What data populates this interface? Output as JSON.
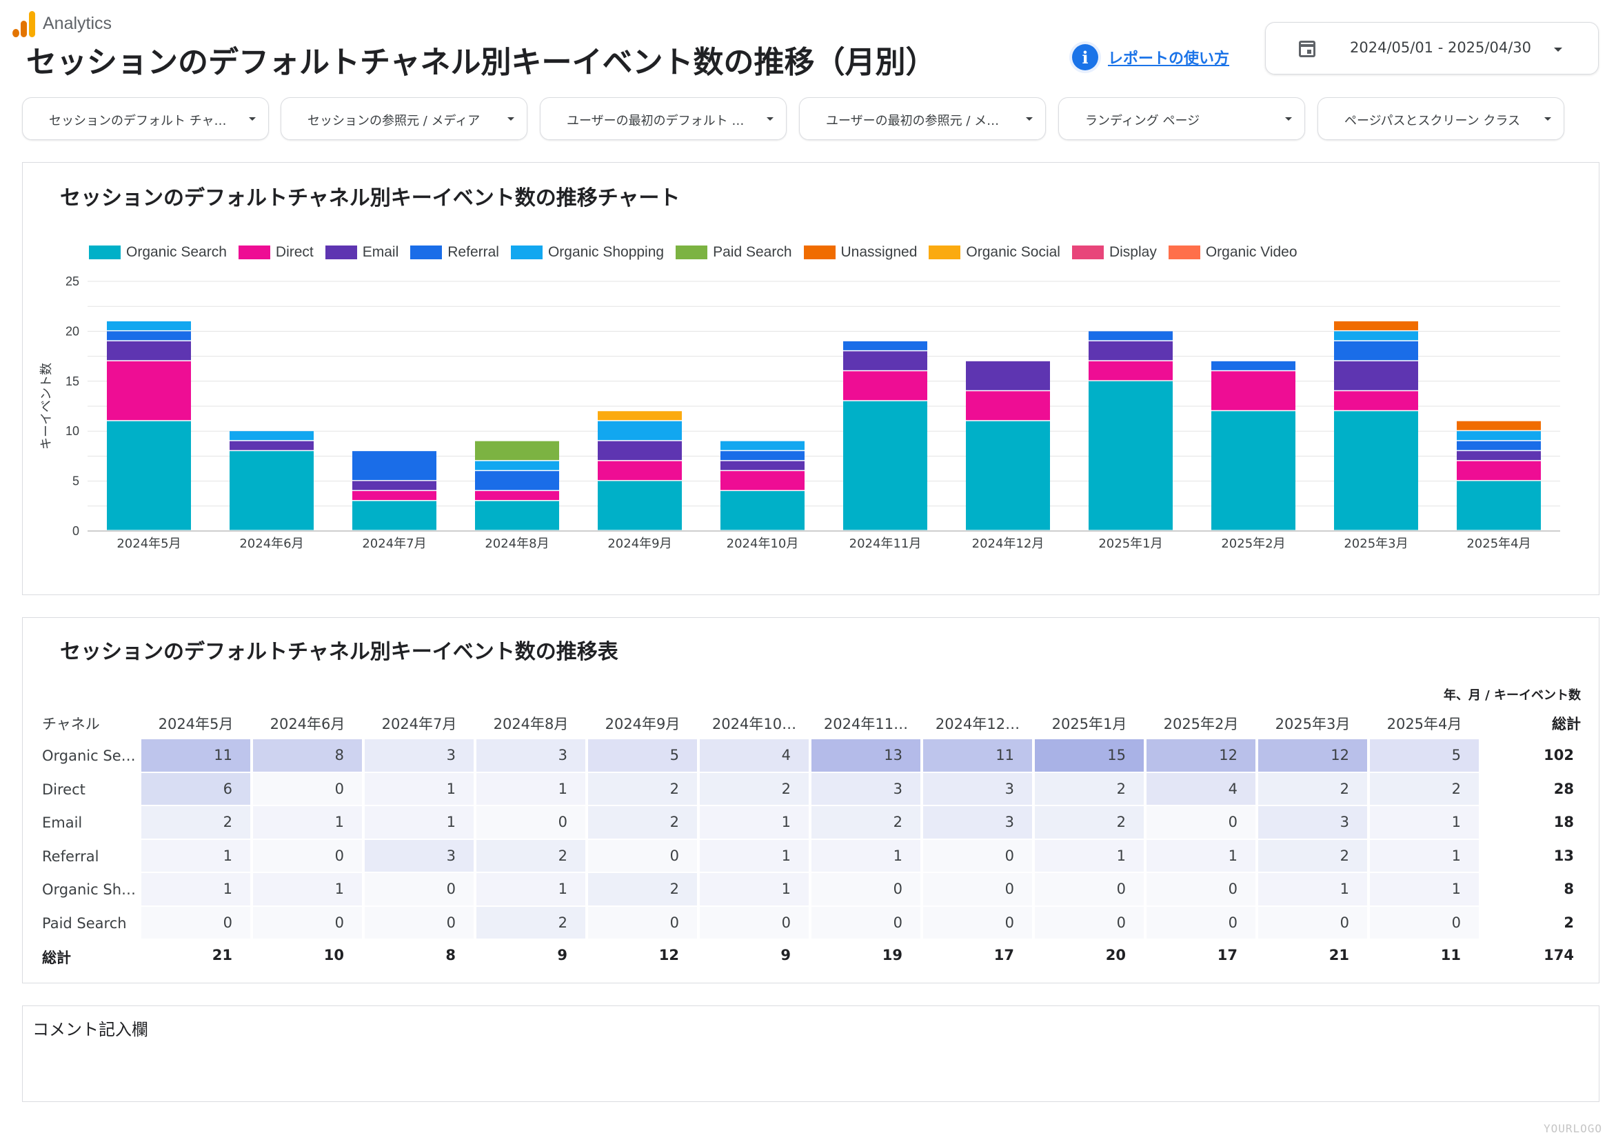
{
  "app": {
    "brand": "Analytics"
  },
  "page": {
    "title": "セッションのデフォルトチャネル別キーイベント数の推移（月別）",
    "help_link": "レポートの使い方",
    "date_range": "2024/05/01 - 2025/04/30"
  },
  "filters": [
    "セッションのデフォルト チャ…",
    "セッションの参照元 / メディア",
    "ユーザーの最初のデフォルト …",
    "ユーザーの最初の参照元 / メ…",
    "ランディング ページ",
    "ページパスとスクリーン クラス"
  ],
  "chart_panel": {
    "title": "セッションのデフォルトチャネル別キーイベント数の推移チャート"
  },
  "chart_data": {
    "type": "bar",
    "stacked": true,
    "ylabel": "キーイベント数",
    "ylim": [
      0,
      25
    ],
    "yticks": [
      0,
      5,
      10,
      15,
      20,
      25
    ],
    "grid": true,
    "legend_position": "top-left",
    "categories": [
      "2024年5月",
      "2024年6月",
      "2024年7月",
      "2024年8月",
      "2024年9月",
      "2024年10月",
      "2024年11月",
      "2024年12月",
      "2025年1月",
      "2025年2月",
      "2025年3月",
      "2025年4月"
    ],
    "series": [
      {
        "name": "Organic Search",
        "color": "#00b0c8",
        "values": [
          11,
          8,
          3,
          3,
          5,
          4,
          13,
          11,
          15,
          12,
          12,
          5
        ]
      },
      {
        "name": "Direct",
        "color": "#ee0d94",
        "values": [
          6,
          0,
          1,
          1,
          2,
          2,
          3,
          3,
          2,
          4,
          2,
          2
        ]
      },
      {
        "name": "Email",
        "color": "#5e35b1",
        "values": [
          2,
          1,
          1,
          0,
          2,
          1,
          2,
          3,
          2,
          0,
          3,
          1
        ]
      },
      {
        "name": "Referral",
        "color": "#1a6de8",
        "values": [
          1,
          0,
          3,
          2,
          0,
          1,
          1,
          0,
          1,
          1,
          2,
          1
        ]
      },
      {
        "name": "Organic Shopping",
        "color": "#12a7f0",
        "values": [
          1,
          1,
          0,
          1,
          2,
          1,
          0,
          0,
          0,
          0,
          1,
          1
        ]
      },
      {
        "name": "Paid Search",
        "color": "#7cb342",
        "values": [
          0,
          0,
          0,
          2,
          0,
          0,
          0,
          0,
          0,
          0,
          0,
          0
        ]
      },
      {
        "name": "Unassigned",
        "color": "#f06c00",
        "values": [
          0,
          0,
          0,
          0,
          0,
          0,
          0,
          0,
          0,
          0,
          1,
          1
        ]
      },
      {
        "name": "Organic Social",
        "color": "#fbaa10",
        "values": [
          0,
          0,
          0,
          0,
          1,
          0,
          0,
          0,
          0,
          0,
          0,
          0
        ]
      },
      {
        "name": "Display",
        "color": "#e8457a",
        "values": [
          0,
          0,
          0,
          0,
          0,
          0,
          0,
          0,
          0,
          0,
          0,
          0
        ]
      },
      {
        "name": "Organic Video",
        "color": "#ff6f4a",
        "values": [
          0,
          0,
          0,
          0,
          0,
          0,
          0,
          0,
          0,
          0,
          0,
          0
        ]
      }
    ]
  },
  "table_panel": {
    "title": "セッションのデフォルトチャネル別キーイベント数の推移表",
    "dim_caption": "年、月 / キーイベント数",
    "row_header": "チャネル",
    "total_header": "総計",
    "columns": [
      "2024年5月",
      "2024年6月",
      "2024年7月",
      "2024年8月",
      "2024年9月",
      "2024年10…",
      "2024年11…",
      "2024年12…",
      "2025年1月",
      "2025年2月",
      "2025年3月",
      "2025年4月"
    ],
    "rows": [
      {
        "label": "Organic Se…",
        "values": [
          "11",
          "8",
          "3",
          "3",
          "5",
          "4",
          "13",
          "11",
          "15",
          "12",
          "12",
          "5"
        ],
        "total": "102"
      },
      {
        "label": "Direct",
        "values": [
          "6",
          "0",
          "1",
          "1",
          "2",
          "2",
          "3",
          "3",
          "2",
          "4",
          "2",
          "2"
        ],
        "total": "28"
      },
      {
        "label": "Email",
        "values": [
          "2",
          "1",
          "1",
          "0",
          "2",
          "1",
          "2",
          "3",
          "2",
          "0",
          "3",
          "1"
        ],
        "total": "18"
      },
      {
        "label": "Referral",
        "values": [
          "1",
          "0",
          "3",
          "2",
          "0",
          "1",
          "1",
          "0",
          "1",
          "1",
          "2",
          "1"
        ],
        "total": "13"
      },
      {
        "label": "Organic Sh…",
        "values": [
          "1",
          "1",
          "0",
          "1",
          "2",
          "1",
          "0",
          "0",
          "0",
          "0",
          "1",
          "1"
        ],
        "total": "8"
      },
      {
        "label": "Paid Search",
        "values": [
          "0",
          "0",
          "0",
          "2",
          "0",
          "0",
          "0",
          "0",
          "0",
          "0",
          "0",
          "0"
        ],
        "total": "2"
      }
    ],
    "totals_row": {
      "label": "総計",
      "values": [
        "21",
        "10",
        "8",
        "9",
        "12",
        "9",
        "19",
        "17",
        "20",
        "17",
        "21",
        "11"
      ],
      "total": "174"
    }
  },
  "comment_panel": {
    "label": "コメント記入欄"
  },
  "watermark": "YOURLOGO",
  "colors": {
    "accent": "#1a73e8",
    "heat_max": "#a9b2e6"
  }
}
